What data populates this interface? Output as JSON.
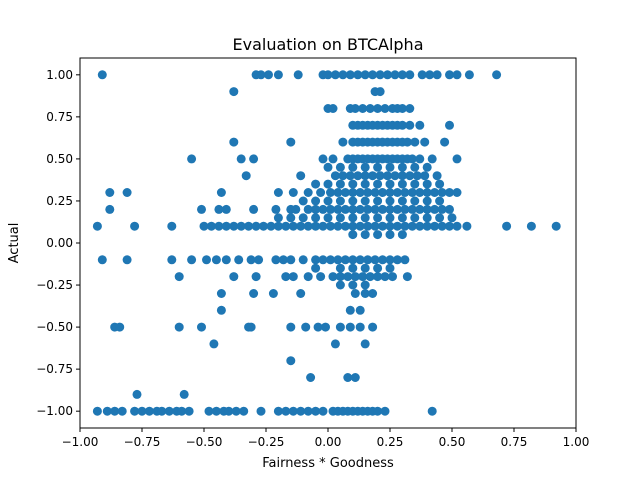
{
  "chart_data": {
    "type": "scatter",
    "title": "Evaluation on BTCAlpha",
    "xlabel": "Fairness * Goodness",
    "ylabel": "Actual",
    "xlim": [
      -1.0,
      1.0
    ],
    "ylim": [
      -1.1,
      1.1
    ],
    "xticks": [
      -1.0,
      -0.75,
      -0.5,
      -0.25,
      0.0,
      0.25,
      0.5,
      0.75,
      1.0
    ],
    "yticks": [
      -1.0,
      -0.75,
      -0.5,
      -0.25,
      0.0,
      0.25,
      0.5,
      0.75,
      1.0
    ],
    "xtick_labels": [
      "−1.00",
      "−0.75",
      "−0.50",
      "−0.25",
      "0.00",
      "0.25",
      "0.50",
      "0.75",
      "1.00"
    ],
    "ytick_labels": [
      "−1.00",
      "−0.75",
      "−0.50",
      "−0.25",
      "0.00",
      "0.25",
      "0.50",
      "0.75",
      "1.00"
    ],
    "grid": false,
    "marker_color": "#1f77b4",
    "points": [
      [
        -0.91,
        1.0
      ],
      [
        -0.29,
        1.0
      ],
      [
        -0.27,
        1.0
      ],
      [
        -0.24,
        1.0
      ],
      [
        -0.2,
        1.0
      ],
      [
        -0.12,
        1.0
      ],
      [
        -0.02,
        1.0
      ],
      [
        0.0,
        1.0
      ],
      [
        0.03,
        1.0
      ],
      [
        0.06,
        1.0
      ],
      [
        0.09,
        1.0
      ],
      [
        0.12,
        1.0
      ],
      [
        0.15,
        1.0
      ],
      [
        0.18,
        1.0
      ],
      [
        0.21,
        1.0
      ],
      [
        0.24,
        1.0
      ],
      [
        0.27,
        1.0
      ],
      [
        0.3,
        1.0
      ],
      [
        0.33,
        1.0
      ],
      [
        0.38,
        1.0
      ],
      [
        0.41,
        1.0
      ],
      [
        0.44,
        1.0
      ],
      [
        0.49,
        1.0
      ],
      [
        0.52,
        1.0
      ],
      [
        0.57,
        1.0
      ],
      [
        0.68,
        1.0
      ],
      [
        -0.38,
        0.9
      ],
      [
        0.19,
        0.9
      ],
      [
        0.21,
        0.9
      ],
      [
        0.0,
        0.8
      ],
      [
        0.02,
        0.8
      ],
      [
        0.09,
        0.8
      ],
      [
        0.11,
        0.8
      ],
      [
        0.14,
        0.8
      ],
      [
        0.17,
        0.8
      ],
      [
        0.2,
        0.8
      ],
      [
        0.23,
        0.8
      ],
      [
        0.26,
        0.8
      ],
      [
        0.28,
        0.8
      ],
      [
        0.3,
        0.8
      ],
      [
        0.33,
        0.8
      ],
      [
        0.1,
        0.7
      ],
      [
        0.12,
        0.7
      ],
      [
        0.14,
        0.7
      ],
      [
        0.16,
        0.7
      ],
      [
        0.18,
        0.7
      ],
      [
        0.2,
        0.7
      ],
      [
        0.22,
        0.7
      ],
      [
        0.24,
        0.7
      ],
      [
        0.26,
        0.7
      ],
      [
        0.28,
        0.7
      ],
      [
        0.3,
        0.7
      ],
      [
        0.33,
        0.7
      ],
      [
        0.37,
        0.7
      ],
      [
        0.49,
        0.7
      ],
      [
        -0.38,
        0.6
      ],
      [
        -0.15,
        0.6
      ],
      [
        0.06,
        0.6
      ],
      [
        0.1,
        0.6
      ],
      [
        0.12,
        0.6
      ],
      [
        0.14,
        0.6
      ],
      [
        0.16,
        0.6
      ],
      [
        0.18,
        0.6
      ],
      [
        0.2,
        0.6
      ],
      [
        0.22,
        0.6
      ],
      [
        0.24,
        0.6
      ],
      [
        0.26,
        0.6
      ],
      [
        0.28,
        0.6
      ],
      [
        0.3,
        0.6
      ],
      [
        0.32,
        0.6
      ],
      [
        0.35,
        0.6
      ],
      [
        0.39,
        0.6
      ],
      [
        0.47,
        0.6
      ],
      [
        -0.55,
        0.5
      ],
      [
        -0.35,
        0.5
      ],
      [
        -0.3,
        0.5
      ],
      [
        -0.02,
        0.5
      ],
      [
        0.02,
        0.5
      ],
      [
        0.08,
        0.5
      ],
      [
        0.1,
        0.5
      ],
      [
        0.12,
        0.5
      ],
      [
        0.14,
        0.5
      ],
      [
        0.16,
        0.5
      ],
      [
        0.18,
        0.5
      ],
      [
        0.2,
        0.5
      ],
      [
        0.22,
        0.5
      ],
      [
        0.24,
        0.5
      ],
      [
        0.26,
        0.5
      ],
      [
        0.28,
        0.5
      ],
      [
        0.3,
        0.5
      ],
      [
        0.32,
        0.5
      ],
      [
        0.34,
        0.5
      ],
      [
        0.37,
        0.5
      ],
      [
        0.42,
        0.5
      ],
      [
        0.52,
        0.5
      ],
      [
        0.0,
        0.45
      ],
      [
        0.05,
        0.45
      ],
      [
        0.1,
        0.45
      ],
      [
        0.15,
        0.45
      ],
      [
        0.2,
        0.45
      ],
      [
        0.25,
        0.45
      ],
      [
        0.3,
        0.45
      ],
      [
        0.35,
        0.45
      ],
      [
        0.4,
        0.45
      ],
      [
        -0.33,
        0.4
      ],
      [
        -0.11,
        0.4
      ],
      [
        0.03,
        0.4
      ],
      [
        0.06,
        0.4
      ],
      [
        0.09,
        0.4
      ],
      [
        0.12,
        0.4
      ],
      [
        0.15,
        0.4
      ],
      [
        0.18,
        0.4
      ],
      [
        0.21,
        0.4
      ],
      [
        0.24,
        0.4
      ],
      [
        0.27,
        0.4
      ],
      [
        0.3,
        0.4
      ],
      [
        0.33,
        0.4
      ],
      [
        0.36,
        0.4
      ],
      [
        0.39,
        0.4
      ],
      [
        0.44,
        0.4
      ],
      [
        -0.05,
        0.35
      ],
      [
        0.0,
        0.35
      ],
      [
        0.05,
        0.35
      ],
      [
        0.1,
        0.35
      ],
      [
        0.15,
        0.35
      ],
      [
        0.2,
        0.35
      ],
      [
        0.25,
        0.35
      ],
      [
        0.3,
        0.35
      ],
      [
        0.35,
        0.35
      ],
      [
        0.4,
        0.35
      ],
      [
        0.45,
        0.35
      ],
      [
        -0.88,
        0.3
      ],
      [
        -0.81,
        0.3
      ],
      [
        -0.43,
        0.3
      ],
      [
        -0.2,
        0.3
      ],
      [
        -0.14,
        0.3
      ],
      [
        -0.08,
        0.3
      ],
      [
        -0.03,
        0.3
      ],
      [
        0.01,
        0.3
      ],
      [
        0.04,
        0.3
      ],
      [
        0.07,
        0.3
      ],
      [
        0.1,
        0.3
      ],
      [
        0.13,
        0.3
      ],
      [
        0.16,
        0.3
      ],
      [
        0.19,
        0.3
      ],
      [
        0.22,
        0.3
      ],
      [
        0.25,
        0.3
      ],
      [
        0.28,
        0.3
      ],
      [
        0.31,
        0.3
      ],
      [
        0.34,
        0.3
      ],
      [
        0.37,
        0.3
      ],
      [
        0.4,
        0.3
      ],
      [
        0.43,
        0.3
      ],
      [
        0.46,
        0.3
      ],
      [
        0.49,
        0.3
      ],
      [
        0.52,
        0.3
      ],
      [
        -0.1,
        0.25
      ],
      [
        -0.05,
        0.25
      ],
      [
        0.0,
        0.25
      ],
      [
        0.05,
        0.25
      ],
      [
        0.1,
        0.25
      ],
      [
        0.15,
        0.25
      ],
      [
        0.2,
        0.25
      ],
      [
        0.25,
        0.25
      ],
      [
        0.3,
        0.25
      ],
      [
        0.35,
        0.25
      ],
      [
        0.4,
        0.25
      ],
      [
        0.45,
        0.25
      ],
      [
        -0.88,
        0.2
      ],
      [
        -0.51,
        0.2
      ],
      [
        -0.44,
        0.2
      ],
      [
        -0.41,
        0.2
      ],
      [
        -0.3,
        0.2
      ],
      [
        -0.21,
        0.2
      ],
      [
        -0.15,
        0.2
      ],
      [
        -0.13,
        0.2
      ],
      [
        -0.08,
        0.2
      ],
      [
        -0.05,
        0.2
      ],
      [
        -0.02,
        0.2
      ],
      [
        0.01,
        0.2
      ],
      [
        0.04,
        0.2
      ],
      [
        0.07,
        0.2
      ],
      [
        0.1,
        0.2
      ],
      [
        0.13,
        0.2
      ],
      [
        0.16,
        0.2
      ],
      [
        0.19,
        0.2
      ],
      [
        0.22,
        0.2
      ],
      [
        0.25,
        0.2
      ],
      [
        0.28,
        0.2
      ],
      [
        0.31,
        0.2
      ],
      [
        0.34,
        0.2
      ],
      [
        0.37,
        0.2
      ],
      [
        0.4,
        0.2
      ],
      [
        0.43,
        0.2
      ],
      [
        0.46,
        0.2
      ],
      [
        0.49,
        0.2
      ],
      [
        -0.2,
        0.15
      ],
      [
        -0.15,
        0.15
      ],
      [
        -0.1,
        0.15
      ],
      [
        -0.05,
        0.15
      ],
      [
        0.0,
        0.15
      ],
      [
        0.05,
        0.15
      ],
      [
        0.1,
        0.15
      ],
      [
        0.15,
        0.15
      ],
      [
        0.2,
        0.15
      ],
      [
        0.25,
        0.15
      ],
      [
        0.3,
        0.15
      ],
      [
        0.35,
        0.15
      ],
      [
        0.4,
        0.15
      ],
      [
        0.45,
        0.15
      ],
      [
        0.5,
        0.15
      ],
      [
        -0.93,
        0.1
      ],
      [
        -0.78,
        0.1
      ],
      [
        -0.63,
        0.1
      ],
      [
        -0.5,
        0.1
      ],
      [
        -0.47,
        0.1
      ],
      [
        -0.44,
        0.1
      ],
      [
        -0.41,
        0.1
      ],
      [
        -0.38,
        0.1
      ],
      [
        -0.35,
        0.1
      ],
      [
        -0.32,
        0.1
      ],
      [
        -0.29,
        0.1
      ],
      [
        -0.26,
        0.1
      ],
      [
        -0.23,
        0.1
      ],
      [
        -0.2,
        0.1
      ],
      [
        -0.17,
        0.1
      ],
      [
        -0.14,
        0.1
      ],
      [
        -0.11,
        0.1
      ],
      [
        -0.08,
        0.1
      ],
      [
        -0.05,
        0.1
      ],
      [
        -0.02,
        0.1
      ],
      [
        0.01,
        0.1
      ],
      [
        0.04,
        0.1
      ],
      [
        0.07,
        0.1
      ],
      [
        0.1,
        0.1
      ],
      [
        0.13,
        0.1
      ],
      [
        0.16,
        0.1
      ],
      [
        0.19,
        0.1
      ],
      [
        0.22,
        0.1
      ],
      [
        0.25,
        0.1
      ],
      [
        0.28,
        0.1
      ],
      [
        0.31,
        0.1
      ],
      [
        0.34,
        0.1
      ],
      [
        0.37,
        0.1
      ],
      [
        0.4,
        0.1
      ],
      [
        0.43,
        0.1
      ],
      [
        0.46,
        0.1
      ],
      [
        0.49,
        0.1
      ],
      [
        0.52,
        0.1
      ],
      [
        0.56,
        0.1
      ],
      [
        0.72,
        0.1
      ],
      [
        0.82,
        0.1
      ],
      [
        0.92,
        0.1
      ],
      [
        0.1,
        0.05
      ],
      [
        0.15,
        0.05
      ],
      [
        0.2,
        0.05
      ],
      [
        0.25,
        0.05
      ],
      [
        0.3,
        0.05
      ],
      [
        -0.91,
        -0.1
      ],
      [
        -0.81,
        -0.1
      ],
      [
        -0.63,
        -0.1
      ],
      [
        -0.55,
        -0.1
      ],
      [
        -0.49,
        -0.1
      ],
      [
        -0.45,
        -0.1
      ],
      [
        -0.41,
        -0.1
      ],
      [
        -0.36,
        -0.1
      ],
      [
        -0.31,
        -0.1
      ],
      [
        -0.28,
        -0.1
      ],
      [
        -0.21,
        -0.1
      ],
      [
        -0.18,
        -0.1
      ],
      [
        -0.15,
        -0.1
      ],
      [
        -0.1,
        -0.1
      ],
      [
        -0.05,
        -0.1
      ],
      [
        -0.02,
        -0.1
      ],
      [
        0.01,
        -0.1
      ],
      [
        0.04,
        -0.1
      ],
      [
        0.07,
        -0.1
      ],
      [
        0.1,
        -0.1
      ],
      [
        0.13,
        -0.1
      ],
      [
        0.16,
        -0.1
      ],
      [
        0.19,
        -0.1
      ],
      [
        0.22,
        -0.1
      ],
      [
        0.25,
        -0.1
      ],
      [
        0.28,
        -0.1
      ],
      [
        0.31,
        -0.1
      ],
      [
        -0.05,
        -0.15
      ],
      [
        0.05,
        -0.15
      ],
      [
        0.1,
        -0.15
      ],
      [
        0.15,
        -0.15
      ],
      [
        0.2,
        -0.15
      ],
      [
        0.25,
        -0.15
      ],
      [
        -0.6,
        -0.2
      ],
      [
        -0.38,
        -0.2
      ],
      [
        -0.29,
        -0.2
      ],
      [
        -0.17,
        -0.2
      ],
      [
        -0.14,
        -0.2
      ],
      [
        -0.08,
        -0.2
      ],
      [
        -0.03,
        -0.2
      ],
      [
        0.02,
        -0.2
      ],
      [
        0.05,
        -0.2
      ],
      [
        0.08,
        -0.2
      ],
      [
        0.11,
        -0.2
      ],
      [
        0.14,
        -0.2
      ],
      [
        0.17,
        -0.2
      ],
      [
        0.2,
        -0.2
      ],
      [
        0.23,
        -0.2
      ],
      [
        0.26,
        -0.2
      ],
      [
        0.32,
        -0.2
      ],
      [
        0.05,
        -0.25
      ],
      [
        0.1,
        -0.25
      ],
      [
        0.15,
        -0.25
      ],
      [
        -0.43,
        -0.3
      ],
      [
        -0.3,
        -0.3
      ],
      [
        -0.22,
        -0.3
      ],
      [
        -0.11,
        -0.3
      ],
      [
        0.11,
        -0.3
      ],
      [
        0.15,
        -0.3
      ],
      [
        0.18,
        -0.3
      ],
      [
        -0.43,
        -0.4
      ],
      [
        0.09,
        -0.4
      ],
      [
        0.13,
        -0.4
      ],
      [
        -0.86,
        -0.5
      ],
      [
        -0.84,
        -0.5
      ],
      [
        -0.6,
        -0.5
      ],
      [
        -0.51,
        -0.5
      ],
      [
        -0.32,
        -0.5
      ],
      [
        -0.31,
        -0.5
      ],
      [
        -0.15,
        -0.5
      ],
      [
        -0.09,
        -0.5
      ],
      [
        -0.04,
        -0.5
      ],
      [
        -0.01,
        -0.5
      ],
      [
        0.05,
        -0.5
      ],
      [
        0.09,
        -0.5
      ],
      [
        0.13,
        -0.5
      ],
      [
        0.18,
        -0.5
      ],
      [
        -0.46,
        -0.6
      ],
      [
        0.03,
        -0.6
      ],
      [
        0.15,
        -0.6
      ],
      [
        -0.15,
        -0.7
      ],
      [
        -0.77,
        -0.9
      ],
      [
        -0.58,
        -0.9
      ],
      [
        -0.07,
        -0.8
      ],
      [
        0.08,
        -0.8
      ],
      [
        0.11,
        -0.8
      ],
      [
        -0.93,
        -1.0
      ],
      [
        -0.89,
        -1.0
      ],
      [
        -0.86,
        -1.0
      ],
      [
        -0.83,
        -1.0
      ],
      [
        -0.78,
        -1.0
      ],
      [
        -0.75,
        -1.0
      ],
      [
        -0.72,
        -1.0
      ],
      [
        -0.69,
        -1.0
      ],
      [
        -0.67,
        -1.0
      ],
      [
        -0.64,
        -1.0
      ],
      [
        -0.61,
        -1.0
      ],
      [
        -0.59,
        -1.0
      ],
      [
        -0.56,
        -1.0
      ],
      [
        -0.48,
        -1.0
      ],
      [
        -0.45,
        -1.0
      ],
      [
        -0.42,
        -1.0
      ],
      [
        -0.4,
        -1.0
      ],
      [
        -0.37,
        -1.0
      ],
      [
        -0.34,
        -1.0
      ],
      [
        -0.27,
        -1.0
      ],
      [
        -0.2,
        -1.0
      ],
      [
        -0.17,
        -1.0
      ],
      [
        -0.14,
        -1.0
      ],
      [
        -0.11,
        -1.0
      ],
      [
        -0.08,
        -1.0
      ],
      [
        -0.05,
        -1.0
      ],
      [
        -0.02,
        -1.0
      ],
      [
        0.02,
        -1.0
      ],
      [
        0.04,
        -1.0
      ],
      [
        0.06,
        -1.0
      ],
      [
        0.08,
        -1.0
      ],
      [
        0.1,
        -1.0
      ],
      [
        0.12,
        -1.0
      ],
      [
        0.14,
        -1.0
      ],
      [
        0.16,
        -1.0
      ],
      [
        0.18,
        -1.0
      ],
      [
        0.2,
        -1.0
      ],
      [
        0.23,
        -1.0
      ],
      [
        0.42,
        -1.0
      ]
    ]
  }
}
